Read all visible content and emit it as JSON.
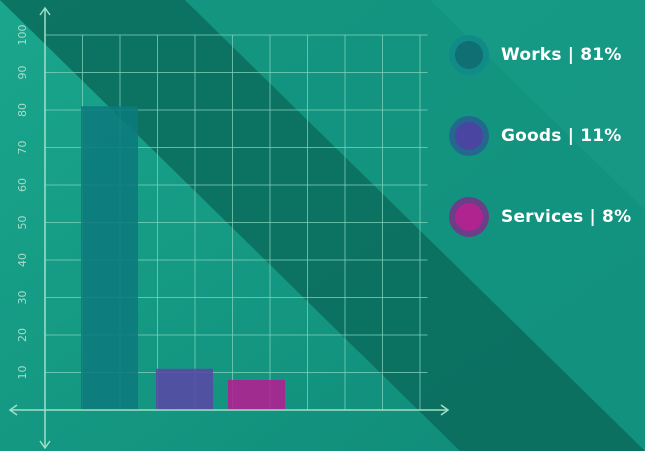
{
  "chart_data": {
    "type": "bar",
    "categories": [
      "Works",
      "Goods",
      "Services"
    ],
    "values": [
      81,
      11,
      8
    ],
    "colors": [
      "#0c7a7c",
      "#5a48a6",
      "#b41e92"
    ],
    "ylim": [
      0,
      100
    ],
    "yticks": [
      10,
      20,
      30,
      40,
      50,
      60,
      70,
      80,
      90,
      100
    ],
    "grid": true,
    "legend_position": "right"
  },
  "legend": {
    "items": [
      {
        "label": "Works | 81%",
        "icon": "teal-circle-icon",
        "outer": "#118b87",
        "inner": "#0f6f72"
      },
      {
        "label": "Goods | 11%",
        "icon": "purple-circle-icon",
        "outer": "#24688f",
        "inner": "#4a45a0"
      },
      {
        "label": "Services | 8%",
        "icon": "magenta-circle-icon",
        "outer": "#6a3f88",
        "inner": "#b0248f"
      }
    ]
  },
  "colors": {
    "background_light": "#15a08a",
    "background_dark": "#0b6a5c",
    "grid": "#7fd3bd",
    "tick_text": "#a6dcc9",
    "text": "#ffffff"
  }
}
